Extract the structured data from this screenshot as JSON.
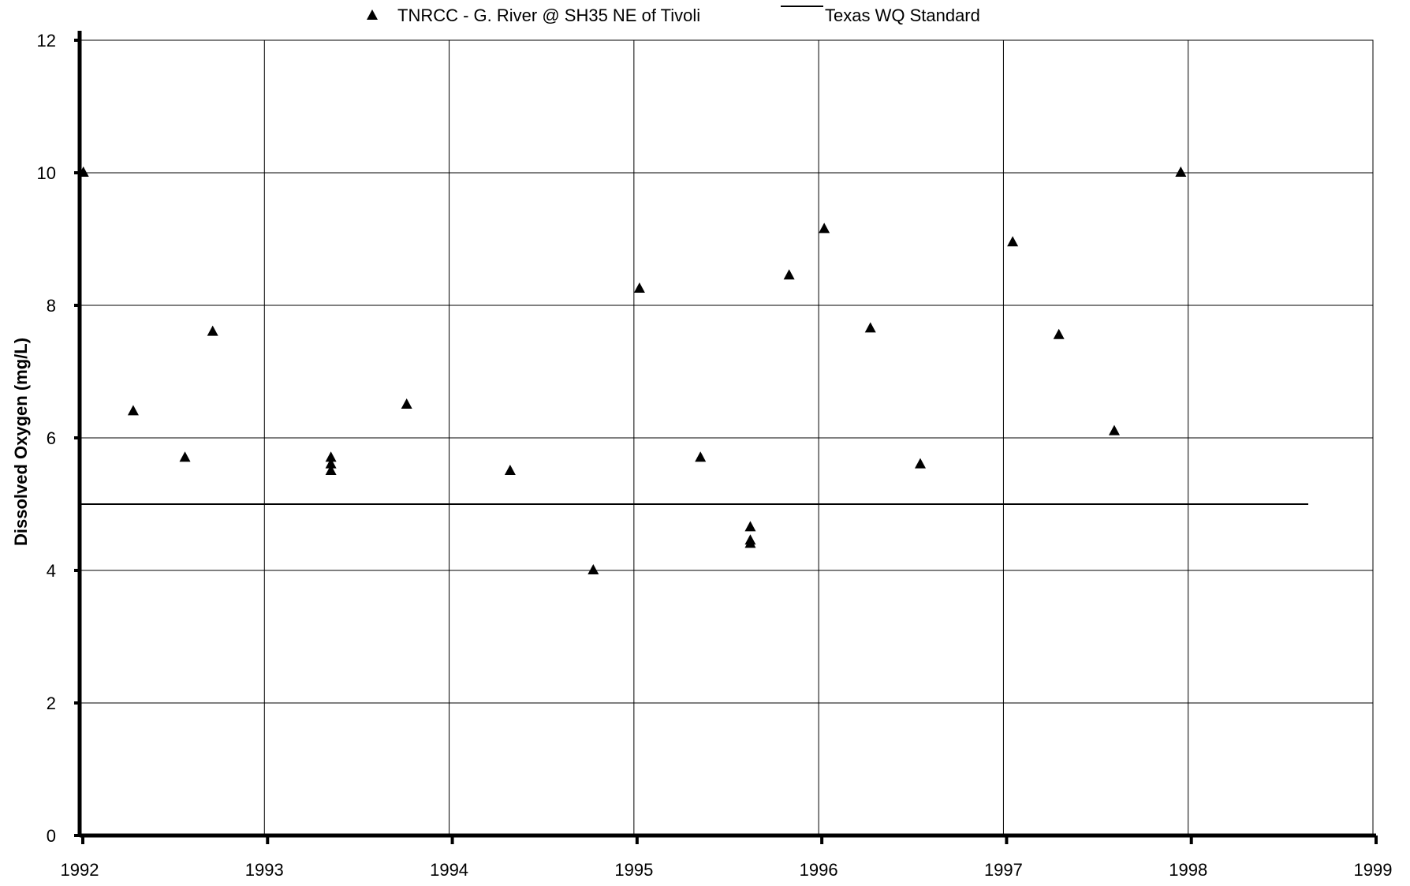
{
  "chart_data": {
    "type": "scatter",
    "title": "",
    "xlabel": "",
    "ylabel": "Dissolved Oxygen (mg/L)",
    "xlim": [
      1992,
      1999
    ],
    "ylim": [
      0,
      12
    ],
    "x_ticks": [
      "1992",
      "1993",
      "1994",
      "1995",
      "1996",
      "1997",
      "1998",
      "1999"
    ],
    "y_ticks": [
      "0",
      "2",
      "4",
      "6",
      "8",
      "10",
      "12"
    ],
    "grid": true,
    "legend_position": "top",
    "series": [
      {
        "name": "TNRCC - G. River @ SH35 NE of Tivoli",
        "marker": "triangle",
        "color": "#000000",
        "points": [
          {
            "x": 1992.02,
            "y": 10.0
          },
          {
            "x": 1992.29,
            "y": 6.4
          },
          {
            "x": 1992.57,
            "y": 5.7
          },
          {
            "x": 1992.72,
            "y": 7.6
          },
          {
            "x": 1993.36,
            "y": 5.7
          },
          {
            "x": 1993.36,
            "y": 5.6
          },
          {
            "x": 1993.36,
            "y": 5.5
          },
          {
            "x": 1993.77,
            "y": 6.5
          },
          {
            "x": 1994.33,
            "y": 5.5
          },
          {
            "x": 1994.78,
            "y": 4.0
          },
          {
            "x": 1995.03,
            "y": 8.25
          },
          {
            "x": 1995.36,
            "y": 5.7
          },
          {
            "x": 1995.63,
            "y": 4.65
          },
          {
            "x": 1995.63,
            "y": 4.45
          },
          {
            "x": 1995.63,
            "y": 4.4
          },
          {
            "x": 1995.84,
            "y": 8.45
          },
          {
            "x": 1996.03,
            "y": 9.15
          },
          {
            "x": 1996.28,
            "y": 7.65
          },
          {
            "x": 1996.55,
            "y": 5.6
          },
          {
            "x": 1997.05,
            "y": 8.95
          },
          {
            "x": 1997.3,
            "y": 7.55
          },
          {
            "x": 1997.6,
            "y": 6.1
          },
          {
            "x": 1997.96,
            "y": 10.0
          }
        ]
      },
      {
        "name": "Texas WQ Standard",
        "marker": "line",
        "color": "#000000",
        "points": [
          {
            "x": 1992.0,
            "y": 5.0
          },
          {
            "x": 1998.65,
            "y": 5.0
          }
        ]
      }
    ]
  }
}
